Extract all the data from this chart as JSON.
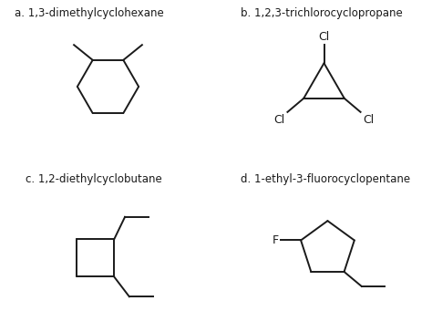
{
  "title_a": "a. 1,3-dimethylcyclohexane",
  "title_b": "b. 1,2,3-trichlorocyclopropane",
  "title_c": "c. 1,2-diethylcyclobutane",
  "title_d": "d. 1-ethyl-3-fluorocyclopentane",
  "line_color": "#1a1a1a",
  "bg_color": "#ffffff",
  "lw": 1.4,
  "fs_title": 8.5,
  "fs_label": 9.0
}
